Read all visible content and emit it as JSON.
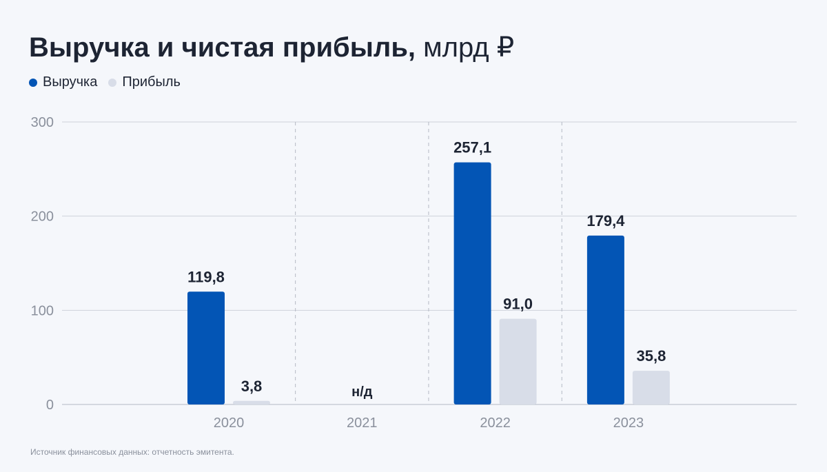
{
  "title": {
    "bold": "Выручка и чистая прибыль,",
    "unit": "млрд ₽"
  },
  "colors": {
    "revenue": "#0355b5",
    "profit": "#d8dde8",
    "grid": "#cdd1da",
    "axis": "#8a909c",
    "label": "#1d2433"
  },
  "source": "Источник финансовых данных: отчетность эмитента.",
  "chart_data": {
    "type": "bar",
    "categories": [
      "2020",
      "2021",
      "2022",
      "2023"
    ],
    "series": [
      {
        "name": "Выручка",
        "values": [
          119.8,
          null,
          257.1,
          179.4
        ],
        "labels": [
          "119,8",
          "",
          "257,1",
          "179,4"
        ]
      },
      {
        "name": "Прибыль",
        "values": [
          3.8,
          null,
          91.0,
          35.8
        ],
        "labels": [
          "3,8",
          "",
          "91,0",
          "35,8"
        ]
      }
    ],
    "missing_labels": [
      "",
      "н/д",
      "",
      ""
    ],
    "yticks": [
      "0",
      "100",
      "200",
      "300"
    ],
    "ylim": [
      0,
      300
    ],
    "grid": true,
    "legend": "top-left"
  }
}
